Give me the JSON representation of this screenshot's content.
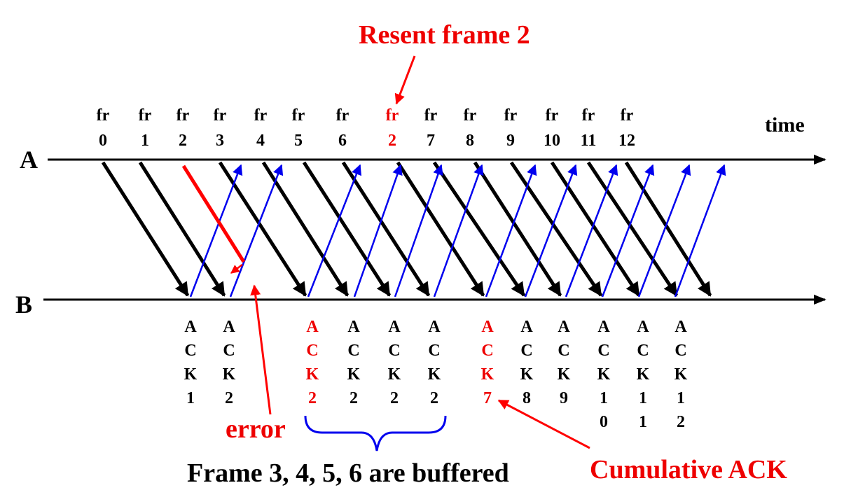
{
  "colors": {
    "frame": "#000000",
    "ack": "#0000ee",
    "error": "#ff0000",
    "highlight": "#ee0000"
  },
  "timeline": {
    "a_label": "A",
    "b_label": "B",
    "time_label": "time"
  },
  "frames": [
    {
      "prefix": "fr",
      "num": "0",
      "highlight": false
    },
    {
      "prefix": "fr",
      "num": "1",
      "highlight": false
    },
    {
      "prefix": "fr",
      "num": "2",
      "highlight": false
    },
    {
      "prefix": "fr",
      "num": "3",
      "highlight": false
    },
    {
      "prefix": "fr",
      "num": "4",
      "highlight": false
    },
    {
      "prefix": "fr",
      "num": "5",
      "highlight": false
    },
    {
      "prefix": "fr",
      "num": "6",
      "highlight": false
    },
    {
      "prefix": "fr",
      "num": "2",
      "highlight": true
    },
    {
      "prefix": "fr",
      "num": "7",
      "highlight": false
    },
    {
      "prefix": "fr",
      "num": "8",
      "highlight": false
    },
    {
      "prefix": "fr",
      "num": "9",
      "highlight": false
    },
    {
      "prefix": "fr",
      "num": "10",
      "highlight": false
    },
    {
      "prefix": "fr",
      "num": "11",
      "highlight": false
    },
    {
      "prefix": "fr",
      "num": "12",
      "highlight": false
    }
  ],
  "acks": [
    {
      "chars": [
        "A",
        "C",
        "K",
        "1"
      ],
      "highlight": false
    },
    {
      "chars": [
        "A",
        "C",
        "K",
        "2"
      ],
      "highlight": false
    },
    {
      "chars": [
        "A",
        "C",
        "K",
        "2"
      ],
      "highlight": true
    },
    {
      "chars": [
        "A",
        "C",
        "K",
        "2"
      ],
      "highlight": false
    },
    {
      "chars": [
        "A",
        "C",
        "K",
        "2"
      ],
      "highlight": false
    },
    {
      "chars": [
        "A",
        "C",
        "K",
        "2"
      ],
      "highlight": false
    },
    {
      "chars": [
        "A",
        "C",
        "K",
        "7"
      ],
      "highlight": true
    },
    {
      "chars": [
        "A",
        "C",
        "K",
        "8"
      ],
      "highlight": false
    },
    {
      "chars": [
        "A",
        "C",
        "K",
        "9"
      ],
      "highlight": false
    },
    {
      "chars": [
        "A",
        "C",
        "K",
        "1",
        "0"
      ],
      "highlight": false
    },
    {
      "chars": [
        "A",
        "C",
        "K",
        "1",
        "1"
      ],
      "highlight": false
    },
    {
      "chars": [
        "A",
        "C",
        "K",
        "1",
        "2"
      ],
      "highlight": false
    }
  ],
  "annotations": {
    "resent": "Resent frame 2",
    "error": "error",
    "buffered": "Frame 3, 4, 5, 6 are buffered",
    "cumulative": "Cumulative ACK"
  }
}
